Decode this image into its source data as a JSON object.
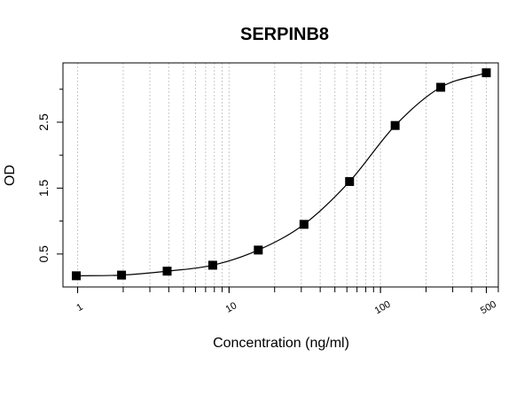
{
  "chart_data": {
    "type": "scatter",
    "title": "SERPINB8",
    "xlabel": "Concentration (ng/ml)",
    "ylabel": "OD",
    "x_scale": "log",
    "xlim": [
      0.8,
      600
    ],
    "ylim": [
      0.0,
      3.4
    ],
    "x_tick_labels": [
      "1",
      "10",
      "100",
      "500"
    ],
    "x_ticks": [
      1,
      10,
      100,
      500
    ],
    "y_tick_labels": [
      "0.5",
      "1.5",
      "2.5"
    ],
    "y_ticks": [
      0.5,
      1.5,
      2.5
    ],
    "y_minor_ticks": [
      1.0,
      2.0,
      3.0
    ],
    "grid": "vertical dotted",
    "series": [
      {
        "x": [
          0.98,
          1.95,
          3.9,
          7.8,
          15.6,
          31.25,
          62.5,
          125,
          250,
          500
        ],
        "y": [
          0.17,
          0.18,
          0.24,
          0.33,
          0.56,
          0.95,
          1.6,
          2.45,
          3.03,
          3.25
        ],
        "marker": "square",
        "color": "#000000"
      }
    ],
    "fit_curve": true
  }
}
